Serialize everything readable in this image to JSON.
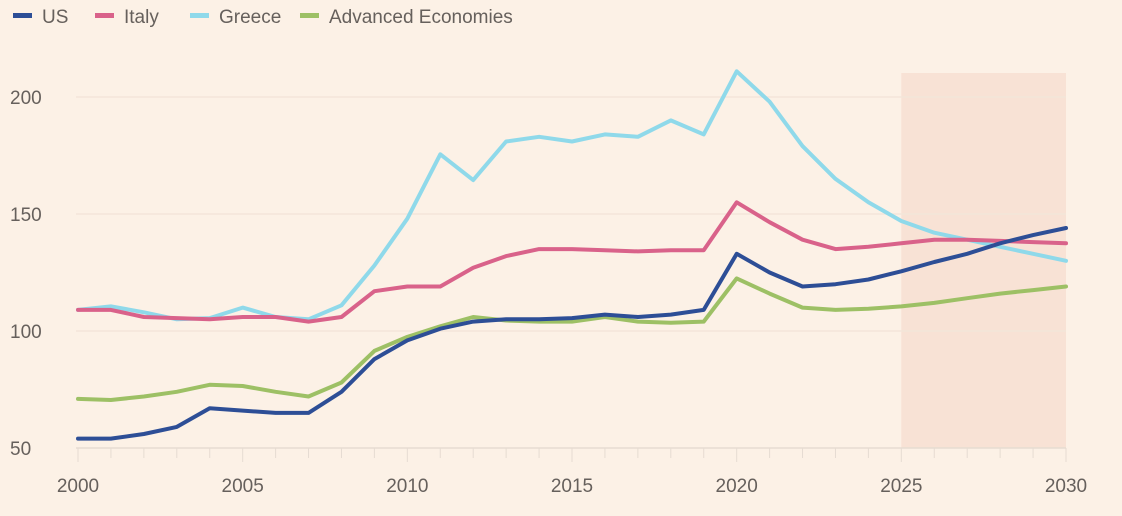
{
  "chart_data": {
    "type": "line",
    "title": "",
    "xlabel": "",
    "ylabel": "",
    "xlim": [
      2000,
      2030
    ],
    "ylim": [
      50,
      210
    ],
    "x_ticks": [
      "2000",
      "2005",
      "2010",
      "2015",
      "2020",
      "2025",
      "2030"
    ],
    "y_ticks": [
      "50",
      "100",
      "150",
      "200"
    ],
    "grid": "horizontal",
    "legend_position": "top-left",
    "shaded_range": [
      2025,
      2030
    ],
    "shade_color": "#f8e2d5",
    "background": "#fcf1e6",
    "x": [
      2000,
      2001,
      2002,
      2003,
      2004,
      2005,
      2006,
      2007,
      2008,
      2009,
      2010,
      2011,
      2012,
      2013,
      2014,
      2015,
      2016,
      2017,
      2018,
      2019,
      2020,
      2021,
      2022,
      2023,
      2024,
      2025,
      2026,
      2027,
      2028,
      2029,
      2030
    ],
    "series": [
      {
        "name": "US",
        "color": "#2d4e96",
        "values": [
          54,
          54,
          56,
          59,
          67,
          66,
          65,
          65,
          74,
          88,
          96,
          101,
          104,
          105,
          105,
          105.5,
          107,
          106,
          107,
          109,
          133,
          125,
          119,
          120,
          122,
          125.5,
          129.5,
          133,
          137.5,
          141,
          144
        ]
      },
      {
        "name": "Italy",
        "color": "#d9628a",
        "values": [
          109,
          109,
          106,
          105.5,
          105,
          106,
          106,
          104,
          106,
          117,
          119,
          119,
          127,
          132,
          135,
          135,
          134.5,
          134,
          134.5,
          134.5,
          155,
          146.5,
          139,
          135,
          136,
          137.5,
          139,
          139,
          138.5,
          138,
          137.5
        ]
      },
      {
        "name": "Greece",
        "color": "#8fd9ea",
        "values": [
          109,
          110.5,
          108,
          105,
          105.5,
          110,
          106,
          105,
          111,
          128,
          148,
          175.5,
          164.5,
          181,
          183,
          181,
          184,
          183,
          190,
          184,
          211,
          198,
          179,
          165,
          155,
          147,
          142,
          139,
          136,
          133,
          130
        ]
      },
      {
        "name": "Advanced Economies",
        "color": "#9dc065",
        "values": [
          71,
          70.5,
          72,
          74,
          77,
          76.5,
          74,
          72,
          78,
          91.5,
          97.5,
          102,
          106,
          104.5,
          104,
          104,
          106,
          104,
          103.5,
          104,
          122.5,
          116,
          110,
          109,
          109.5,
          110.5,
          112,
          114,
          116,
          117.5,
          119
        ]
      }
    ]
  }
}
